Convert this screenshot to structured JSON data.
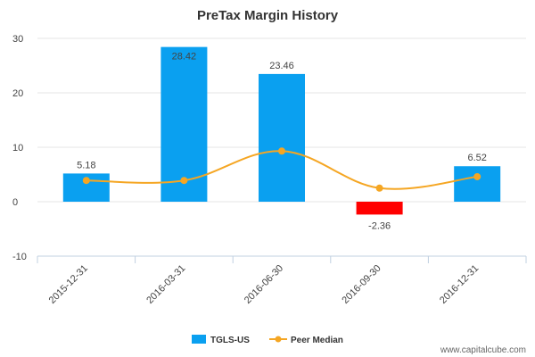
{
  "chart_data": {
    "type": "bar",
    "title": "PreTax Margin History",
    "categories": [
      "2015-12-31",
      "2016-03-31",
      "2016-06-30",
      "2016-09-30",
      "2016-12-31"
    ],
    "series": [
      {
        "name": "TGLS-US",
        "type": "bar",
        "values": [
          5.18,
          28.42,
          23.46,
          -2.36,
          6.52
        ],
        "labels": [
          "5.18",
          "28.42",
          "23.46",
          "-2.36",
          "6.52"
        ],
        "color": "#0aa0f0",
        "negative_color": "#ff0000"
      },
      {
        "name": "Peer Median",
        "type": "line",
        "values": [
          3.9,
          3.9,
          9.3,
          2.5,
          4.6
        ],
        "color": "#f5a623"
      }
    ],
    "yticks": [
      -10,
      0,
      10,
      20,
      30
    ],
    "ylim": [
      -10,
      30
    ],
    "legend_position": "bottom-center"
  },
  "watermark": "www.capitalcube.com"
}
